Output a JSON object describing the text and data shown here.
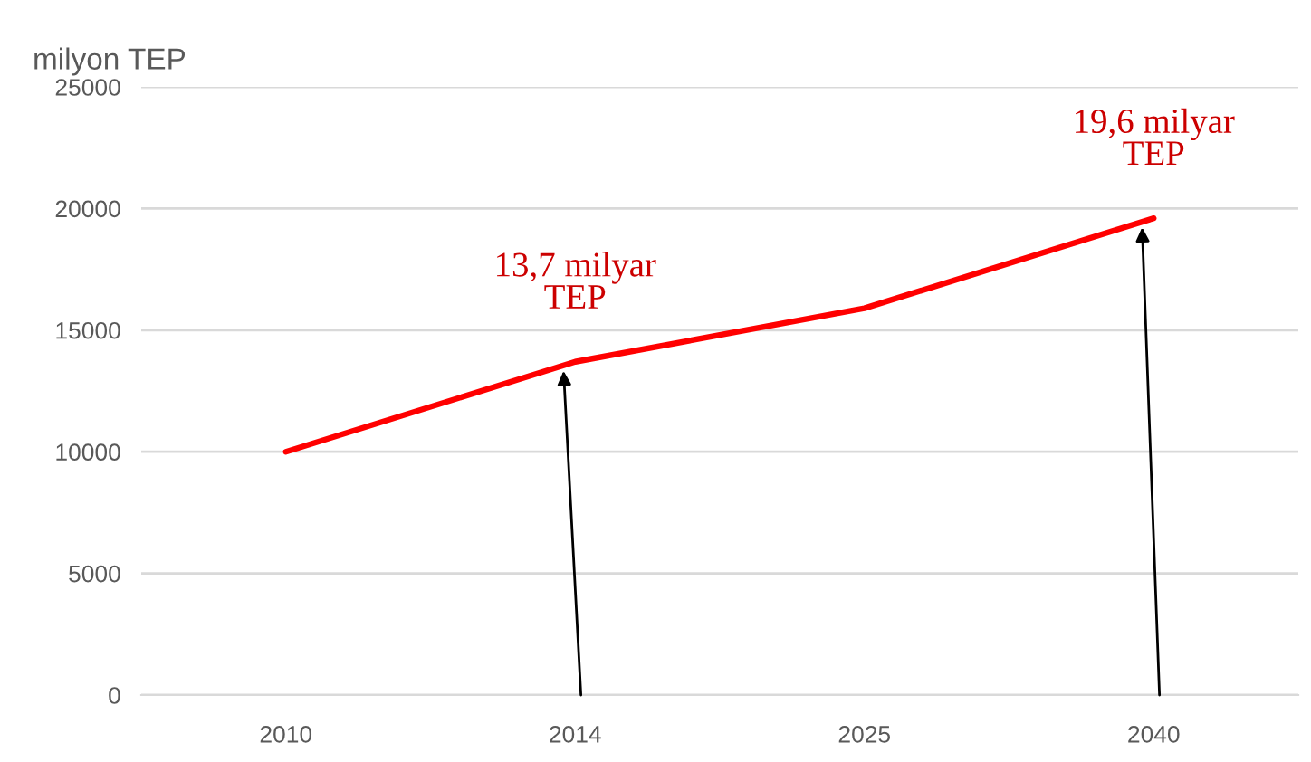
{
  "chart_data": {
    "type": "line",
    "ylabel": "milyon TEP",
    "categories": [
      "2010",
      "2014",
      "2025",
      "2040"
    ],
    "series": [
      {
        "color": "#ff0000",
        "values": [
          10000,
          13700,
          15900,
          19600
        ]
      }
    ],
    "ylim": [
      0,
      25000
    ],
    "yticks": [
      0,
      5000,
      10000,
      15000,
      20000,
      25000
    ],
    "grid": "y",
    "line_style": "solid",
    "annotations": [
      {
        "text": "13,7 milyar\nTEP",
        "x": "2014",
        "y": 13700
      },
      {
        "text": "19,6 milyar\nTEP",
        "x": "2040",
        "y": 19600
      }
    ]
  }
}
